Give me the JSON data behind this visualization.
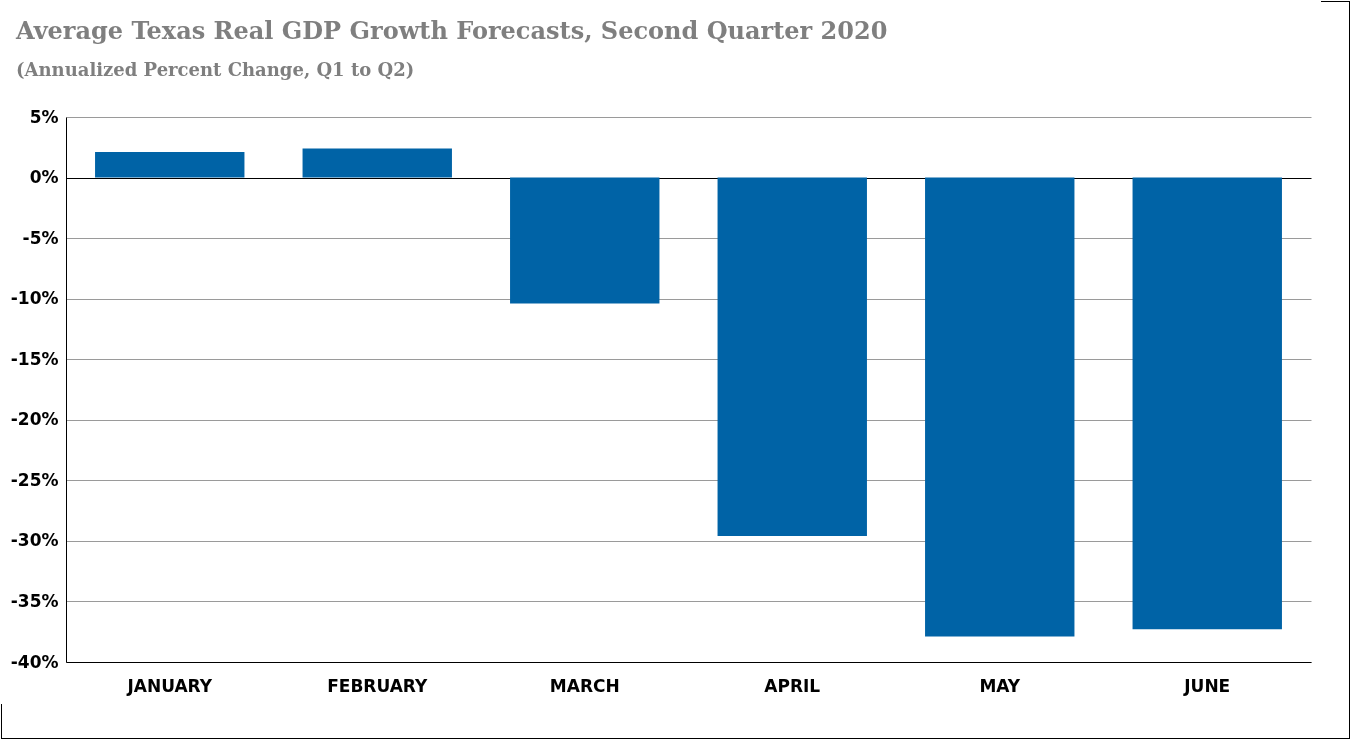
{
  "chart_data": {
    "type": "bar",
    "title": "Average Texas Real GDP Growth Forecasts, Second Quarter 2020",
    "subtitle": "(Annualized Percent Change, Q1 to Q2)",
    "categories": [
      "JANUARY",
      "FEBRUARY",
      "MARCH",
      "APRIL",
      "MAY",
      "JUNE"
    ],
    "values": [
      2.1,
      2.4,
      -10.4,
      -29.6,
      -37.9,
      -37.3
    ],
    "color": "#0063a6",
    "ylim": [
      -40,
      5
    ],
    "yticks": [
      {
        "value": 5,
        "label": "5%"
      },
      {
        "value": 0,
        "label": "0%"
      },
      {
        "value": -5,
        "label": "-5%"
      },
      {
        "value": -10,
        "label": "-10%"
      },
      {
        "value": -15,
        "label": "-15%"
      },
      {
        "value": -20,
        "label": "-20%"
      },
      {
        "value": -25,
        "label": "-25%"
      },
      {
        "value": -30,
        "label": "-30%"
      },
      {
        "value": -35,
        "label": "-35%"
      },
      {
        "value": -40,
        "label": "-40%"
      }
    ],
    "grid": "y"
  }
}
